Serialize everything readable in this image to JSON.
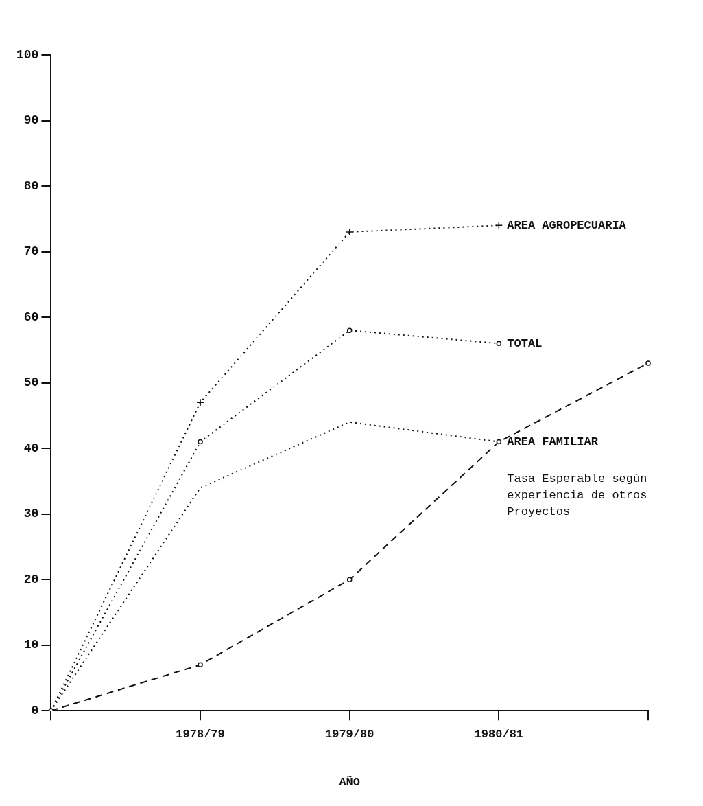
{
  "chart_data": {
    "type": "line",
    "xlabel": "AÑO",
    "categories": [
      null,
      "1978/79",
      "1979/80",
      "1980/81",
      null
    ],
    "ylim": [
      0,
      100
    ],
    "yticks": [
      0,
      10,
      20,
      30,
      40,
      50,
      60,
      70,
      80,
      90,
      100
    ],
    "grid": false,
    "legend": false,
    "series": [
      {
        "name": "AREA AGROPECUARIA",
        "color": "#111111",
        "marker": "cross",
        "line_style": "dotted",
        "values": [
          0,
          47,
          73,
          74,
          null
        ]
      },
      {
        "name": "TOTAL",
        "color": "#111111",
        "marker": "circle",
        "line_style": "dotted",
        "values": [
          0,
          41,
          58,
          56,
          null
        ]
      },
      {
        "name": "AREA FAMILIAR",
        "color": "#111111",
        "line_style": "dotted",
        "values": [
          0,
          34,
          44,
          41,
          null
        ]
      },
      {
        "name": "Tasa Esperable según experiencia de otros Proyectos",
        "color": "#111111",
        "marker": "circle",
        "line_style": "dashed",
        "values": [
          0,
          7,
          20,
          41,
          53
        ]
      }
    ]
  }
}
